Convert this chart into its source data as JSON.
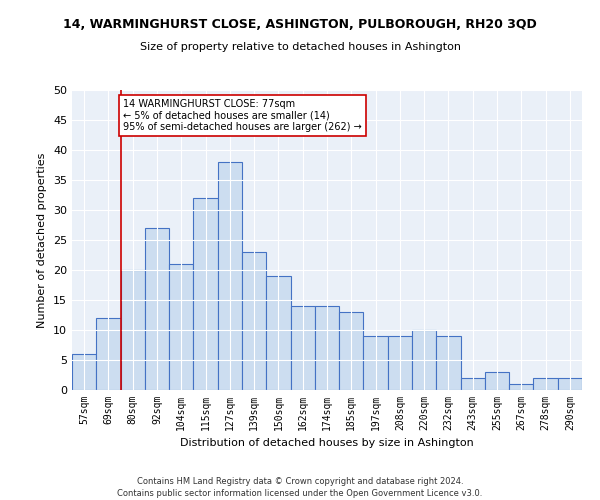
{
  "title": "14, WARMINGHURST CLOSE, ASHINGTON, PULBOROUGH, RH20 3QD",
  "subtitle": "Size of property relative to detached houses in Ashington",
  "xlabel": "Distribution of detached houses by size in Ashington",
  "ylabel": "Number of detached properties",
  "bin_labels": [
    "57sqm",
    "69sqm",
    "80sqm",
    "92sqm",
    "104sqm",
    "115sqm",
    "127sqm",
    "139sqm",
    "150sqm",
    "162sqm",
    "174sqm",
    "185sqm",
    "197sqm",
    "208sqm",
    "220sqm",
    "232sqm",
    "243sqm",
    "255sqm",
    "267sqm",
    "278sqm",
    "290sqm"
  ],
  "bar_heights": [
    6,
    12,
    20,
    27,
    21,
    32,
    38,
    23,
    19,
    14,
    14,
    13,
    9,
    9,
    10,
    9,
    2,
    3,
    1,
    2,
    2
  ],
  "bar_color": "#ccddf0",
  "bar_edge_color": "#4472c4",
  "vline_color": "#cc0000",
  "annotation_text": "14 WARMINGHURST CLOSE: 77sqm\n← 5% of detached houses are smaller (14)\n95% of semi-detached houses are larger (262) →",
  "annotation_box_color": "#ffffff",
  "annotation_box_edge_color": "#cc0000",
  "ylim": [
    0,
    50
  ],
  "yticks": [
    0,
    5,
    10,
    15,
    20,
    25,
    30,
    35,
    40,
    45,
    50
  ],
  "background_color": "#eaf0f8",
  "footer_line1": "Contains HM Land Registry data © Crown copyright and database right 2024.",
  "footer_line2": "Contains public sector information licensed under the Open Government Licence v3.0."
}
